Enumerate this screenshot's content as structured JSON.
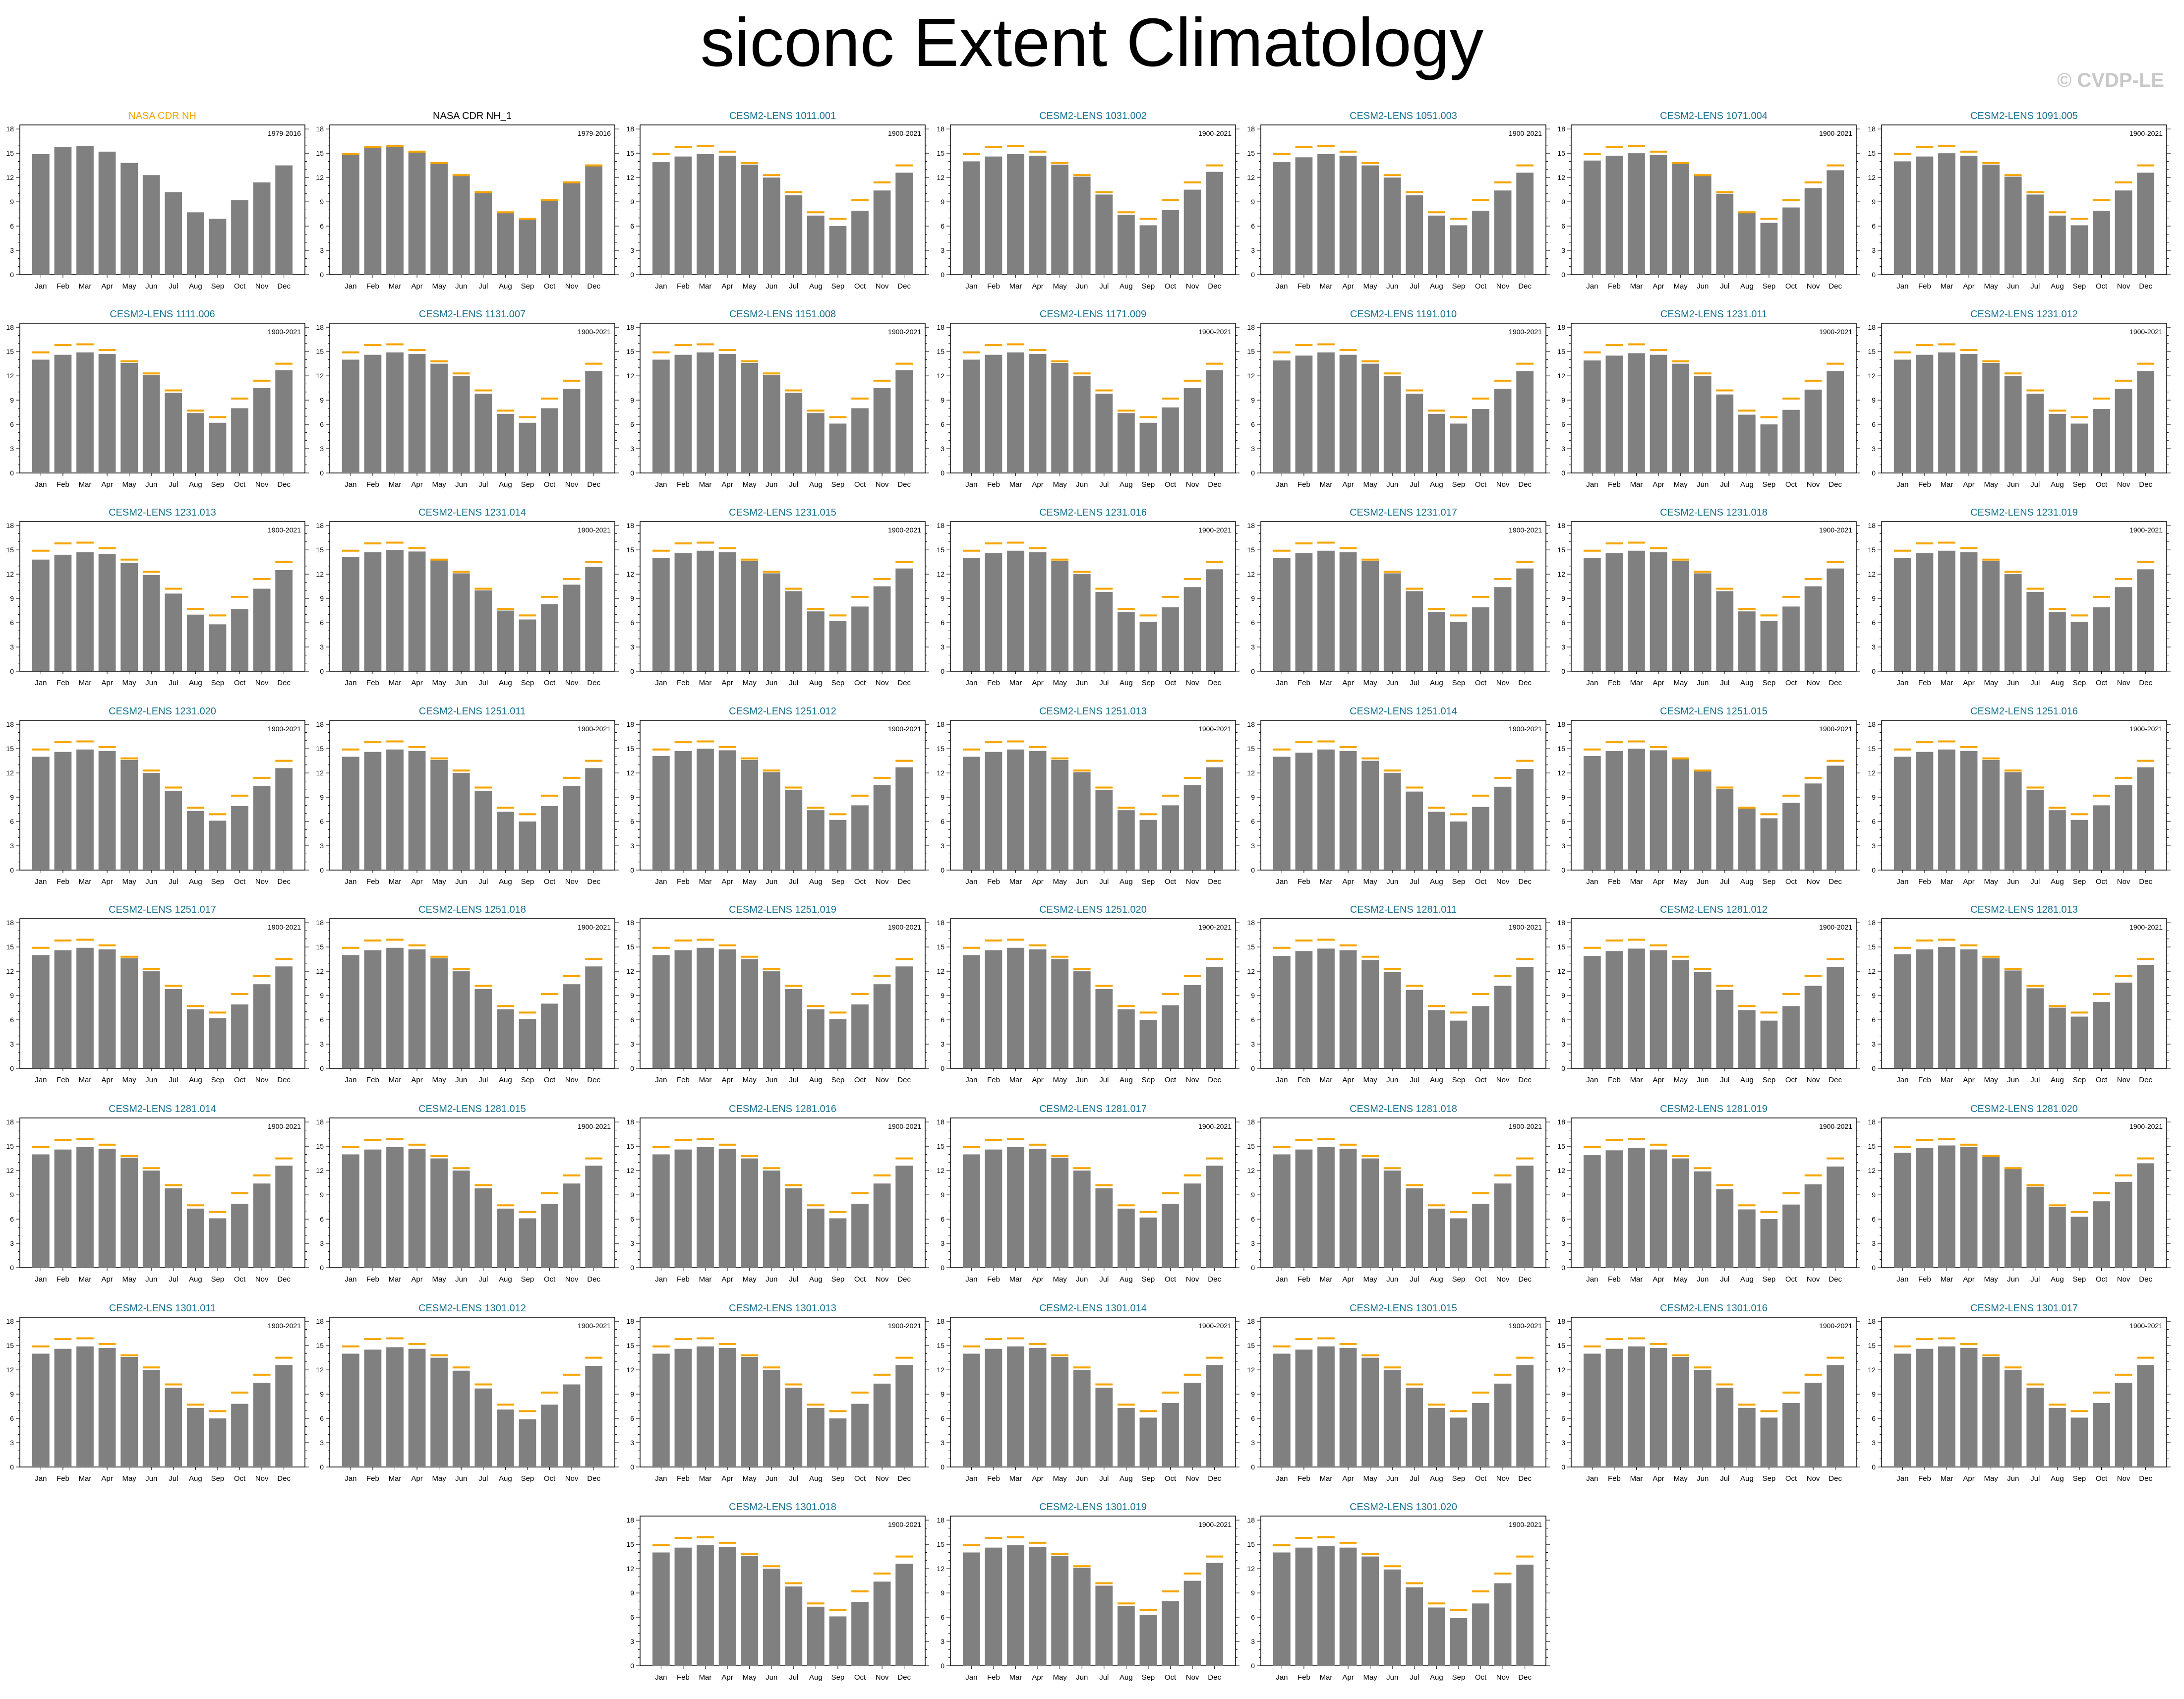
{
  "page": {
    "title": "siconc Extent Climatology",
    "watermark": "© CVDP-LE"
  },
  "colors": {
    "bar": "#808080",
    "obs_line": "#f5a400",
    "obs_title": "#f5a400",
    "ens_title": "#17708f",
    "plain_title": "#000000"
  },
  "axis": {
    "yticks": [
      0,
      3,
      6,
      9,
      12,
      15,
      18
    ],
    "ylim": [
      0,
      18.5
    ]
  },
  "chart_data": {
    "type": "bar",
    "categories": [
      "Jan",
      "Feb",
      "Mar",
      "Apr",
      "May",
      "Jun",
      "Jul",
      "Aug",
      "Sep",
      "Oct",
      "Nov",
      "Dec"
    ],
    "observed_reference": [
      14.9,
      15.8,
      15.9,
      15.2,
      13.8,
      12.3,
      10.2,
      7.7,
      6.9,
      9.2,
      11.4,
      13.5
    ],
    "ylim": [
      0,
      18.5
    ],
    "panels": [
      {
        "title": "NASA CDR NH",
        "title_color": "obs",
        "period": "1979-2016",
        "values": [
          14.9,
          15.8,
          15.9,
          15.2,
          13.8,
          12.3,
          10.2,
          7.7,
          6.9,
          9.2,
          11.4,
          13.5
        ],
        "obs_line": false
      },
      {
        "title": "NASA CDR NH_1",
        "title_color": "plain",
        "period": "1979-2016",
        "values": [
          14.9,
          15.8,
          15.9,
          15.2,
          13.8,
          12.3,
          10.2,
          7.7,
          6.9,
          9.2,
          11.4,
          13.5
        ],
        "obs_line": true
      },
      {
        "title": "CESM2-LENS 1011.001",
        "title_color": "ens",
        "period": "1900-2021",
        "values": [
          13.9,
          14.6,
          14.9,
          14.7,
          13.6,
          12.0,
          9.8,
          7.3,
          6.0,
          7.9,
          10.4,
          12.6
        ],
        "obs_line": true
      },
      {
        "title": "CESM2-LENS 1031.002",
        "title_color": "ens",
        "period": "1900-2021",
        "values": [
          14.0,
          14.6,
          14.9,
          14.7,
          13.6,
          12.1,
          9.9,
          7.4,
          6.1,
          8.0,
          10.5,
          12.7
        ],
        "obs_line": true
      },
      {
        "title": "CESM2-LENS 1051.003",
        "title_color": "ens",
        "period": "1900-2021",
        "values": [
          13.9,
          14.5,
          14.9,
          14.7,
          13.5,
          12.0,
          9.8,
          7.3,
          6.1,
          7.9,
          10.4,
          12.6
        ],
        "obs_line": true
      },
      {
        "title": "CESM2-LENS 1071.004",
        "title_color": "ens",
        "period": "1900-2021",
        "values": [
          14.1,
          14.7,
          15.0,
          14.8,
          13.7,
          12.2,
          10.0,
          7.6,
          6.4,
          8.3,
          10.7,
          12.9
        ],
        "obs_line": true
      },
      {
        "title": "CESM2-LENS 1091.005",
        "title_color": "ens",
        "period": "1900-2021",
        "values": [
          14.0,
          14.6,
          15.0,
          14.7,
          13.6,
          12.1,
          9.9,
          7.3,
          6.1,
          7.9,
          10.4,
          12.6
        ],
        "obs_line": true
      },
      {
        "title": "CESM2-LENS 1111.006",
        "title_color": "ens",
        "period": "1900-2021",
        "values": [
          14.0,
          14.6,
          14.9,
          14.7,
          13.6,
          12.1,
          9.9,
          7.4,
          6.2,
          8.0,
          10.5,
          12.7
        ],
        "obs_line": true
      },
      {
        "title": "CESM2-LENS 1131.007",
        "title_color": "ens",
        "period": "1900-2021",
        "values": [
          14.0,
          14.6,
          14.9,
          14.7,
          13.5,
          12.0,
          9.8,
          7.3,
          6.2,
          8.0,
          10.4,
          12.6
        ],
        "obs_line": true
      },
      {
        "title": "CESM2-LENS 1151.008",
        "title_color": "ens",
        "period": "1900-2021",
        "values": [
          14.0,
          14.6,
          14.9,
          14.7,
          13.6,
          12.1,
          9.9,
          7.4,
          6.1,
          8.0,
          10.5,
          12.7
        ],
        "obs_line": true
      },
      {
        "title": "CESM2-LENS 1171.009",
        "title_color": "ens",
        "period": "1900-2021",
        "values": [
          14.0,
          14.6,
          14.9,
          14.7,
          13.6,
          12.0,
          9.8,
          7.4,
          6.2,
          8.1,
          10.5,
          12.7
        ],
        "obs_line": true
      },
      {
        "title": "CESM2-LENS 1191.010",
        "title_color": "ens",
        "period": "1900-2021",
        "values": [
          13.9,
          14.5,
          14.9,
          14.6,
          13.5,
          12.0,
          9.8,
          7.3,
          6.1,
          7.9,
          10.4,
          12.6
        ],
        "obs_line": true
      },
      {
        "title": "CESM2-LENS 1231.011",
        "title_color": "ens",
        "period": "1900-2021",
        "values": [
          13.9,
          14.5,
          14.8,
          14.6,
          13.5,
          12.0,
          9.7,
          7.2,
          6.0,
          7.8,
          10.3,
          12.6
        ],
        "obs_line": true
      },
      {
        "title": "CESM2-LENS 1231.012",
        "title_color": "ens",
        "period": "1900-2021",
        "values": [
          14.0,
          14.6,
          14.9,
          14.7,
          13.6,
          12.0,
          9.8,
          7.3,
          6.1,
          7.9,
          10.4,
          12.6
        ],
        "obs_line": true
      },
      {
        "title": "CESM2-LENS 1231.013",
        "title_color": "ens",
        "period": "1900-2021",
        "values": [
          13.8,
          14.4,
          14.7,
          14.5,
          13.4,
          11.9,
          9.6,
          7.0,
          5.8,
          7.7,
          10.2,
          12.5
        ],
        "obs_line": true
      },
      {
        "title": "CESM2-LENS 1231.014",
        "title_color": "ens",
        "period": "1900-2021",
        "values": [
          14.1,
          14.7,
          15.0,
          14.8,
          13.7,
          12.1,
          10.0,
          7.5,
          6.4,
          8.3,
          10.7,
          12.9
        ],
        "obs_line": true
      },
      {
        "title": "CESM2-LENS 1231.015",
        "title_color": "ens",
        "period": "1900-2021",
        "values": [
          14.0,
          14.6,
          14.9,
          14.7,
          13.6,
          12.1,
          9.9,
          7.4,
          6.2,
          8.0,
          10.5,
          12.7
        ],
        "obs_line": true
      },
      {
        "title": "CESM2-LENS 1231.016",
        "title_color": "ens",
        "period": "1900-2021",
        "values": [
          14.0,
          14.6,
          14.9,
          14.7,
          13.6,
          12.0,
          9.8,
          7.3,
          6.1,
          7.9,
          10.4,
          12.6
        ],
        "obs_line": true
      },
      {
        "title": "CESM2-LENS 1231.017",
        "title_color": "ens",
        "period": "1900-2021",
        "values": [
          14.0,
          14.6,
          14.9,
          14.7,
          13.6,
          12.1,
          9.9,
          7.3,
          6.1,
          7.9,
          10.4,
          12.7
        ],
        "obs_line": true
      },
      {
        "title": "CESM2-LENS 1231.018",
        "title_color": "ens",
        "period": "1900-2021",
        "values": [
          14.0,
          14.6,
          14.9,
          14.7,
          13.6,
          12.1,
          9.9,
          7.4,
          6.2,
          8.0,
          10.5,
          12.7
        ],
        "obs_line": true
      },
      {
        "title": "CESM2-LENS 1231.019",
        "title_color": "ens",
        "period": "1900-2021",
        "values": [
          14.0,
          14.6,
          14.9,
          14.7,
          13.6,
          12.0,
          9.8,
          7.3,
          6.1,
          7.9,
          10.4,
          12.6
        ],
        "obs_line": true
      },
      {
        "title": "CESM2-LENS 1231.020",
        "title_color": "ens",
        "period": "1900-2021",
        "values": [
          14.0,
          14.6,
          14.9,
          14.7,
          13.6,
          12.0,
          9.8,
          7.3,
          6.1,
          7.9,
          10.4,
          12.6
        ],
        "obs_line": true
      },
      {
        "title": "CESM2-LENS 1251.011",
        "title_color": "ens",
        "period": "1900-2021",
        "values": [
          14.0,
          14.6,
          14.9,
          14.7,
          13.6,
          12.0,
          9.8,
          7.2,
          6.0,
          7.9,
          10.4,
          12.6
        ],
        "obs_line": true
      },
      {
        "title": "CESM2-LENS 1251.012",
        "title_color": "ens",
        "period": "1900-2021",
        "values": [
          14.1,
          14.7,
          15.0,
          14.8,
          13.6,
          12.1,
          9.9,
          7.4,
          6.2,
          8.0,
          10.5,
          12.7
        ],
        "obs_line": true
      },
      {
        "title": "CESM2-LENS 1251.013",
        "title_color": "ens",
        "period": "1900-2021",
        "values": [
          14.0,
          14.6,
          14.9,
          14.7,
          13.6,
          12.1,
          9.9,
          7.4,
          6.2,
          8.0,
          10.5,
          12.7
        ],
        "obs_line": true
      },
      {
        "title": "CESM2-LENS 1251.014",
        "title_color": "ens",
        "period": "1900-2021",
        "values": [
          14.0,
          14.5,
          14.9,
          14.7,
          13.5,
          12.0,
          9.7,
          7.2,
          6.0,
          7.8,
          10.3,
          12.5
        ],
        "obs_line": true
      },
      {
        "title": "CESM2-LENS 1251.015",
        "title_color": "ens",
        "period": "1900-2021",
        "values": [
          14.1,
          14.7,
          15.0,
          14.8,
          13.7,
          12.2,
          10.0,
          7.6,
          6.4,
          8.3,
          10.7,
          12.9
        ],
        "obs_line": true
      },
      {
        "title": "CESM2-LENS 1251.016",
        "title_color": "ens",
        "period": "1900-2021",
        "values": [
          14.0,
          14.6,
          14.9,
          14.7,
          13.6,
          12.1,
          9.9,
          7.4,
          6.2,
          8.0,
          10.5,
          12.7
        ],
        "obs_line": true
      },
      {
        "title": "CESM2-LENS 1251.017",
        "title_color": "ens",
        "period": "1900-2021",
        "values": [
          14.0,
          14.6,
          14.9,
          14.7,
          13.6,
          12.0,
          9.8,
          7.3,
          6.2,
          7.9,
          10.4,
          12.6
        ],
        "obs_line": true
      },
      {
        "title": "CESM2-LENS 1251.018",
        "title_color": "ens",
        "period": "1900-2021",
        "values": [
          14.0,
          14.6,
          14.9,
          14.7,
          13.6,
          12.0,
          9.8,
          7.3,
          6.1,
          8.0,
          10.4,
          12.6
        ],
        "obs_line": true
      },
      {
        "title": "CESM2-LENS 1251.019",
        "title_color": "ens",
        "period": "1900-2021",
        "values": [
          14.0,
          14.6,
          14.9,
          14.7,
          13.5,
          12.0,
          9.8,
          7.3,
          6.1,
          7.9,
          10.4,
          12.6
        ],
        "obs_line": true
      },
      {
        "title": "CESM2-LENS 1251.020",
        "title_color": "ens",
        "period": "1900-2021",
        "values": [
          14.0,
          14.6,
          14.9,
          14.7,
          13.5,
          12.0,
          9.8,
          7.3,
          6.0,
          7.8,
          10.3,
          12.5
        ],
        "obs_line": true
      },
      {
        "title": "CESM2-LENS 1281.011",
        "title_color": "ens",
        "period": "1900-2021",
        "values": [
          13.9,
          14.5,
          14.8,
          14.6,
          13.4,
          11.9,
          9.7,
          7.2,
          5.9,
          7.7,
          10.2,
          12.5
        ],
        "obs_line": true
      },
      {
        "title": "CESM2-LENS 1281.012",
        "title_color": "ens",
        "period": "1900-2021",
        "values": [
          13.9,
          14.5,
          14.8,
          14.6,
          13.4,
          11.9,
          9.7,
          7.2,
          5.9,
          7.7,
          10.2,
          12.5
        ],
        "obs_line": true
      },
      {
        "title": "CESM2-LENS 1281.013",
        "title_color": "ens",
        "period": "1900-2021",
        "values": [
          14.1,
          14.7,
          15.0,
          14.7,
          13.6,
          12.1,
          9.9,
          7.5,
          6.4,
          8.2,
          10.6,
          12.8
        ],
        "obs_line": true
      },
      {
        "title": "CESM2-LENS 1281.014",
        "title_color": "ens",
        "period": "1900-2021",
        "values": [
          14.0,
          14.6,
          14.9,
          14.7,
          13.6,
          12.0,
          9.8,
          7.3,
          6.1,
          7.9,
          10.4,
          12.6
        ],
        "obs_line": true
      },
      {
        "title": "CESM2-LENS 1281.015",
        "title_color": "ens",
        "period": "1900-2021",
        "values": [
          14.0,
          14.6,
          14.9,
          14.7,
          13.5,
          12.0,
          9.8,
          7.3,
          6.1,
          7.9,
          10.4,
          12.6
        ],
        "obs_line": true
      },
      {
        "title": "CESM2-LENS 1281.016",
        "title_color": "ens",
        "period": "1900-2021",
        "values": [
          14.0,
          14.6,
          14.9,
          14.7,
          13.5,
          12.0,
          9.8,
          7.3,
          6.1,
          7.9,
          10.4,
          12.6
        ],
        "obs_line": true
      },
      {
        "title": "CESM2-LENS 1281.017",
        "title_color": "ens",
        "period": "1900-2021",
        "values": [
          14.0,
          14.6,
          14.9,
          14.7,
          13.6,
          12.0,
          9.8,
          7.3,
          6.2,
          7.9,
          10.4,
          12.6
        ],
        "obs_line": true
      },
      {
        "title": "CESM2-LENS 1281.018",
        "title_color": "ens",
        "period": "1900-2021",
        "values": [
          14.0,
          14.6,
          14.9,
          14.7,
          13.5,
          12.0,
          9.8,
          7.3,
          6.1,
          7.9,
          10.4,
          12.6
        ],
        "obs_line": true
      },
      {
        "title": "CESM2-LENS 1281.019",
        "title_color": "ens",
        "period": "1900-2021",
        "values": [
          13.9,
          14.5,
          14.8,
          14.6,
          13.5,
          11.9,
          9.7,
          7.2,
          6.0,
          7.8,
          10.3,
          12.5
        ],
        "obs_line": true
      },
      {
        "title": "CESM2-LENS 1281.020",
        "title_color": "ens",
        "period": "1900-2021",
        "values": [
          14.2,
          14.8,
          15.1,
          14.9,
          13.7,
          12.2,
          10.0,
          7.5,
          6.3,
          8.2,
          10.6,
          12.9
        ],
        "obs_line": true
      },
      {
        "title": "CESM2-LENS 1301.011",
        "title_color": "ens",
        "period": "1900-2021",
        "values": [
          14.0,
          14.6,
          14.9,
          14.7,
          13.6,
          12.0,
          9.8,
          7.3,
          6.0,
          7.8,
          10.4,
          12.6
        ],
        "obs_line": true
      },
      {
        "title": "CESM2-LENS 1301.012",
        "title_color": "ens",
        "period": "1900-2021",
        "values": [
          14.0,
          14.5,
          14.8,
          14.6,
          13.5,
          11.9,
          9.7,
          7.1,
          5.9,
          7.7,
          10.2,
          12.5
        ],
        "obs_line": true
      },
      {
        "title": "CESM2-LENS 1301.013",
        "title_color": "ens",
        "period": "1900-2021",
        "values": [
          14.0,
          14.6,
          14.9,
          14.7,
          13.6,
          12.0,
          9.8,
          7.3,
          6.0,
          7.8,
          10.3,
          12.6
        ],
        "obs_line": true
      },
      {
        "title": "CESM2-LENS 1301.014",
        "title_color": "ens",
        "period": "1900-2021",
        "values": [
          14.0,
          14.6,
          14.9,
          14.7,
          13.6,
          12.0,
          9.8,
          7.3,
          6.1,
          7.9,
          10.4,
          12.6
        ],
        "obs_line": true
      },
      {
        "title": "CESM2-LENS 1301.015",
        "title_color": "ens",
        "period": "1900-2021",
        "values": [
          14.0,
          14.5,
          14.9,
          14.7,
          13.5,
          12.0,
          9.8,
          7.3,
          6.1,
          7.9,
          10.3,
          12.6
        ],
        "obs_line": true
      },
      {
        "title": "CESM2-LENS 1301.016",
        "title_color": "ens",
        "period": "1900-2021",
        "values": [
          14.0,
          14.6,
          14.9,
          14.7,
          13.6,
          12.0,
          9.8,
          7.3,
          6.1,
          7.9,
          10.4,
          12.6
        ],
        "obs_line": true
      },
      {
        "title": "CESM2-LENS 1301.017",
        "title_color": "ens",
        "period": "1900-2021",
        "values": [
          14.0,
          14.6,
          14.9,
          14.7,
          13.6,
          12.0,
          9.8,
          7.3,
          6.1,
          7.9,
          10.4,
          12.6
        ],
        "obs_line": true
      },
      {
        "title": "CESM2-LENS 1301.018",
        "title_color": "ens",
        "period": "1900-2021",
        "values": [
          14.0,
          14.6,
          14.9,
          14.7,
          13.6,
          12.0,
          9.8,
          7.3,
          6.1,
          7.9,
          10.4,
          12.6
        ],
        "obs_line": true
      },
      {
        "title": "CESM2-LENS 1301.019",
        "title_color": "ens",
        "period": "1900-2021",
        "values": [
          14.0,
          14.6,
          14.9,
          14.7,
          13.6,
          12.1,
          9.9,
          7.4,
          6.3,
          8.0,
          10.5,
          12.7
        ],
        "obs_line": true
      },
      {
        "title": "CESM2-LENS 1301.020",
        "title_color": "ens",
        "period": "1900-2021",
        "values": [
          14.0,
          14.6,
          14.8,
          14.6,
          13.5,
          11.9,
          9.7,
          7.2,
          5.9,
          7.7,
          10.2,
          12.5
        ],
        "obs_line": true
      }
    ]
  }
}
